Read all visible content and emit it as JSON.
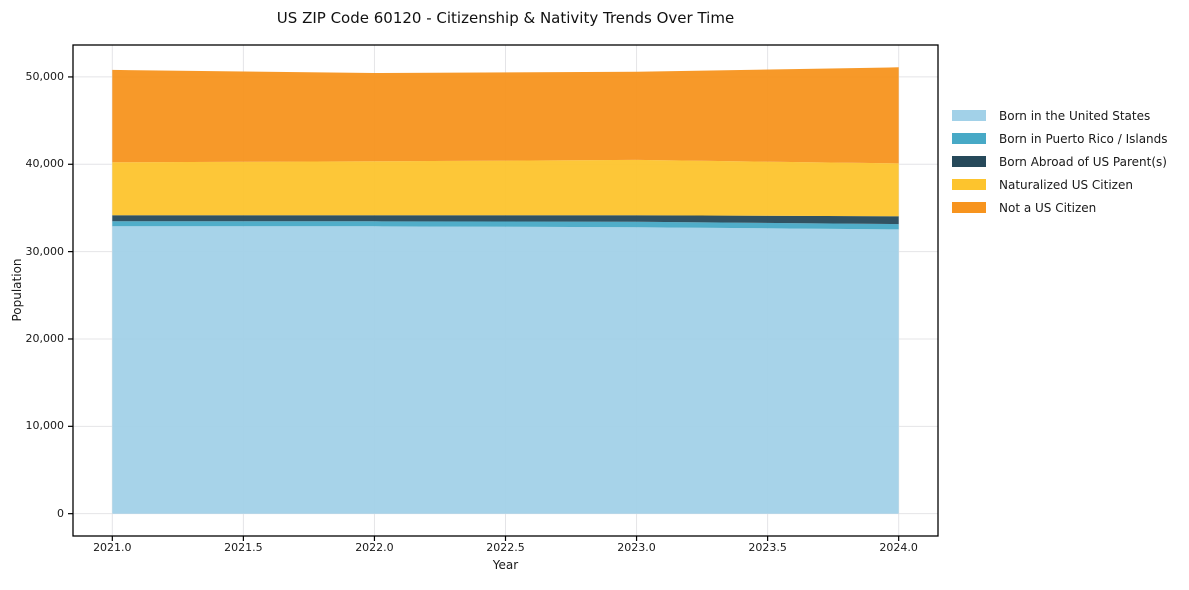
{
  "figure": {
    "background": "#ffffff",
    "note": "static rendered chart image; series values estimated from pixel positions"
  },
  "colors": {
    "frame": "#000000",
    "grid": "#e4e4e7",
    "text": "#1a1a1a"
  },
  "chart_data": {
    "type": "area",
    "stacked": true,
    "title": "US ZIP Code 60120 - Citizenship & Nativity Trends Over Time",
    "xlabel": "Year",
    "ylabel": "Population",
    "grid": true,
    "legend_position": "outside-right",
    "x": [
      2021,
      2022,
      2023,
      2024
    ],
    "series": [
      {
        "name": "Born in the United States",
        "color": "#a2d1e8",
        "values": [
          32900,
          32900,
          32800,
          32550
        ]
      },
      {
        "name": "Born in Puerto Rico / Islands",
        "color": "#47a9c6",
        "values": [
          570,
          570,
          620,
          600
        ]
      },
      {
        "name": "Born Abroad of US Parent(s)",
        "color": "#26495a",
        "values": [
          700,
          700,
          750,
          900
        ]
      },
      {
        "name": "Naturalized US Citizen",
        "color": "#fdc42d",
        "values": [
          6060,
          6170,
          6330,
          6050
        ]
      },
      {
        "name": "Not a US Citizen",
        "color": "#f7941e",
        "values": [
          10570,
          10110,
          10100,
          11000
        ]
      }
    ],
    "totals": [
      50800,
      50450,
      50600,
      51100
    ],
    "xlim": [
      2020.85,
      2024.15
    ],
    "ylim": [
      -2555,
      53655
    ],
    "x_tick_values": [
      2021.0,
      2021.5,
      2022.0,
      2022.5,
      2023.0,
      2023.5,
      2024.0
    ],
    "x_tick_labels": [
      "2021.0",
      "2021.5",
      "2022.0",
      "2022.5",
      "2023.0",
      "2023.5",
      "2024.0"
    ],
    "y_tick_values": [
      0,
      10000,
      20000,
      30000,
      40000,
      50000
    ],
    "y_tick_labels": [
      "0",
      "10,000",
      "20,000",
      "30,000",
      "40,000",
      "50,000"
    ]
  }
}
